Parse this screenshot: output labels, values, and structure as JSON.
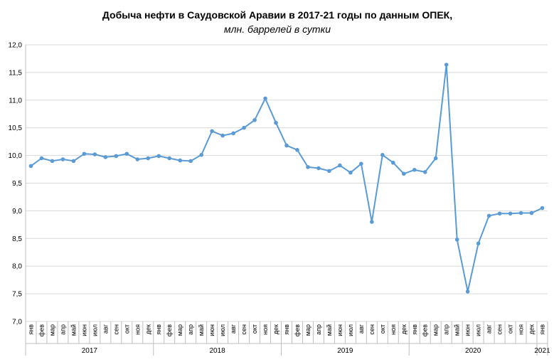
{
  "chart_data": {
    "type": "line",
    "title": "Добыча  нефти в Саудовской  Аравии  в 2017-21 годы по данным  ОПЕК,",
    "subtitle": "млн. баррелей в сутки",
    "ylim": [
      7.0,
      12.0
    ],
    "yticks": [
      "7,0",
      "7,5",
      "8,0",
      "8,5",
      "9,0",
      "9,5",
      "10,0",
      "10,5",
      "11,0",
      "11,5",
      "12,0"
    ],
    "ytick_values": [
      7.0,
      7.5,
      8.0,
      8.5,
      9.0,
      9.5,
      10.0,
      10.5,
      11.0,
      11.5,
      12.0
    ],
    "grid": true,
    "color": "#5b9bd5",
    "months": [
      "янв",
      "фев",
      "мар",
      "апр",
      "май",
      "июн",
      "июл",
      "авг",
      "сен",
      "окт",
      "ноя",
      "дек",
      "янв",
      "фев",
      "мар",
      "апр",
      "май",
      "июн",
      "июл",
      "авг",
      "сен",
      "окт",
      "ноя",
      "дек",
      "янв",
      "фев",
      "мар",
      "апр",
      "май",
      "июн",
      "июл",
      "авг",
      "сен",
      "окт",
      "ноя",
      "дек",
      "янв",
      "фев",
      "мар",
      "апр",
      "май",
      "июн",
      "июл",
      "авг",
      "сен",
      "окт",
      "ноя",
      "дек",
      "янв"
    ],
    "years": [
      {
        "label": "2017",
        "start": 0,
        "count": 12
      },
      {
        "label": "2018",
        "start": 12,
        "count": 12
      },
      {
        "label": "2019",
        "start": 24,
        "count": 12
      },
      {
        "label": "2020",
        "start": 36,
        "count": 12
      },
      {
        "label": "2021",
        "start": 48,
        "count": 1
      }
    ],
    "series": [
      {
        "values": [
          9.81,
          9.95,
          9.9,
          9.93,
          9.9,
          10.03,
          10.02,
          9.97,
          9.99,
          10.03,
          9.93,
          9.95,
          9.99,
          9.95,
          9.91,
          9.9,
          10.01,
          10.44,
          10.36,
          10.4,
          10.5,
          10.64,
          11.03,
          10.59,
          10.18,
          10.1,
          9.79,
          9.77,
          9.72,
          9.82,
          9.69,
          9.85,
          8.8,
          10.01,
          9.87,
          9.67,
          9.74,
          9.7,
          9.95,
          11.64,
          8.48,
          7.54,
          8.41,
          8.91,
          8.95,
          8.95,
          8.96,
          8.96,
          9.05
        ]
      }
    ]
  }
}
